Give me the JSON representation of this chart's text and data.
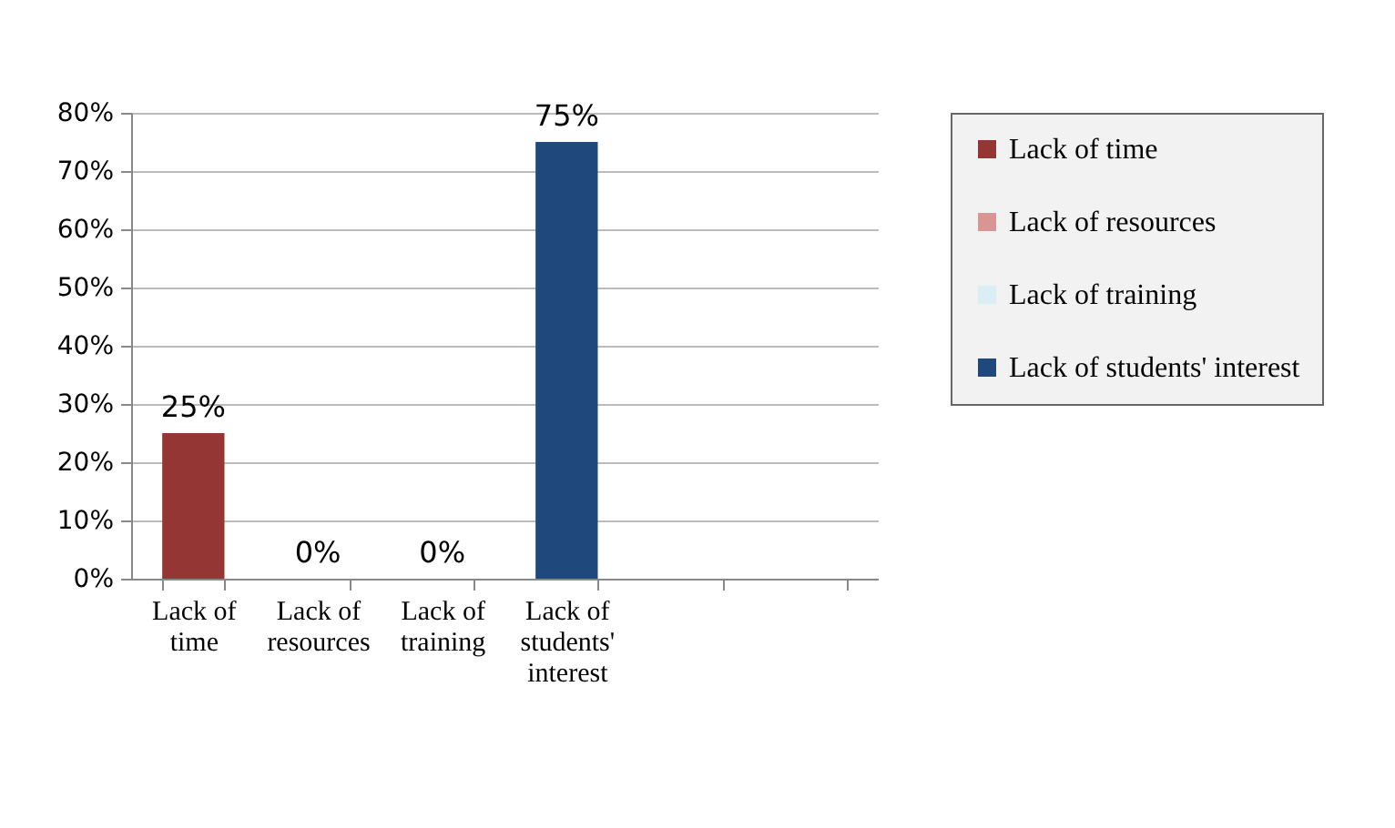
{
  "chart_data": {
    "type": "bar",
    "categories": [
      "Lack of time",
      "Lack of resources",
      "Lack of training",
      "Lack of students' interest",
      null,
      null
    ],
    "series": [
      {
        "name": "Lack of time",
        "color": "#943634",
        "values": [
          25,
          null,
          null,
          null,
          null,
          null
        ],
        "value_labels": [
          "25%",
          null,
          null,
          null,
          null,
          null
        ]
      },
      {
        "name": "Lack of resources",
        "color": "#d99594",
        "values": [
          null,
          0,
          null,
          null,
          null,
          null
        ],
        "value_labels": [
          null,
          "0%",
          null,
          null,
          null,
          null
        ]
      },
      {
        "name": "Lack of training",
        "color": "#dbeef3",
        "values": [
          null,
          null,
          0,
          null,
          null,
          null
        ],
        "value_labels": [
          null,
          null,
          "0%",
          null,
          null,
          null
        ]
      },
      {
        "name": "Lack of students' interest",
        "color": "#1f497d",
        "values": [
          null,
          null,
          null,
          75,
          null,
          null
        ],
        "value_labels": [
          null,
          null,
          null,
          "75%",
          null,
          null
        ]
      }
    ],
    "ylim": [
      0,
      80
    ],
    "yticks": [
      {
        "value": 0,
        "label": "0%"
      },
      {
        "value": 10,
        "label": "10%"
      },
      {
        "value": 20,
        "label": "20%"
      },
      {
        "value": 30,
        "label": "30%"
      },
      {
        "value": 40,
        "label": "40%"
      },
      {
        "value": 50,
        "label": "50%"
      },
      {
        "value": 60,
        "label": "60%"
      },
      {
        "value": 70,
        "label": "70%"
      },
      {
        "value": 80,
        "label": "80%"
      }
    ],
    "grid": "y",
    "legend": "right"
  }
}
